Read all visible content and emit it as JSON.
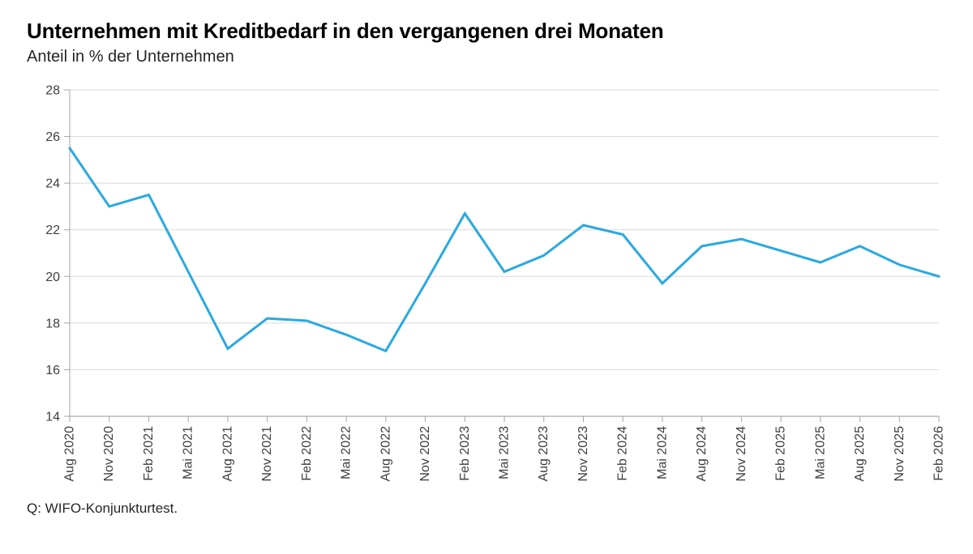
{
  "header": {
    "title": "Unternehmen mit Kreditbedarf in den vergangenen drei Monaten",
    "subtitle": "Anteil in % der Unternehmen"
  },
  "footer": {
    "source": "Q: WIFO-Konjunkturtest."
  },
  "chart_data": {
    "type": "line",
    "title": "Unternehmen mit Kreditbedarf in den vergangenen drei Monaten",
    "subtitle": "Anteil in % der Unternehmen",
    "categories": [
      "Aug 2020",
      "Nov 2020",
      "Feb 2021",
      "Mai 2021",
      "Aug 2021",
      "Nov 2021",
      "Feb 2022",
      "Mai 2022",
      "Aug 2022",
      "Nov 2022",
      "Feb 2023",
      "Mai 2023",
      "Aug 2023",
      "Nov 2023",
      "Feb 2024",
      "Mai 2024",
      "Aug 2024",
      "Nov 2024",
      "Feb 2025",
      "Mai 2025",
      "Aug 2025",
      "Nov 2025",
      "Feb 2026"
    ],
    "series": [
      {
        "name": "Anteil in % der Unternehmen",
        "values": [
          25.5,
          23.0,
          23.5,
          20.2,
          16.9,
          18.2,
          18.1,
          17.5,
          16.8,
          19.7,
          22.7,
          20.2,
          20.9,
          22.2,
          21.8,
          19.7,
          21.3,
          21.6,
          21.1,
          20.6,
          21.3,
          20.5,
          20.0
        ]
      }
    ],
    "xlabel": "",
    "ylabel": "",
    "ylim": [
      14,
      28
    ],
    "yticks": [
      14,
      16,
      18,
      20,
      22,
      24,
      26,
      28
    ],
    "grid": "horizontal",
    "legend_position": "none",
    "x_label_rotation": -90,
    "colors": {
      "line": "#29a9e1",
      "grid": "#d9d9d9",
      "axis": "#a6a6a6",
      "tick_label": "#3f3f3f"
    }
  }
}
